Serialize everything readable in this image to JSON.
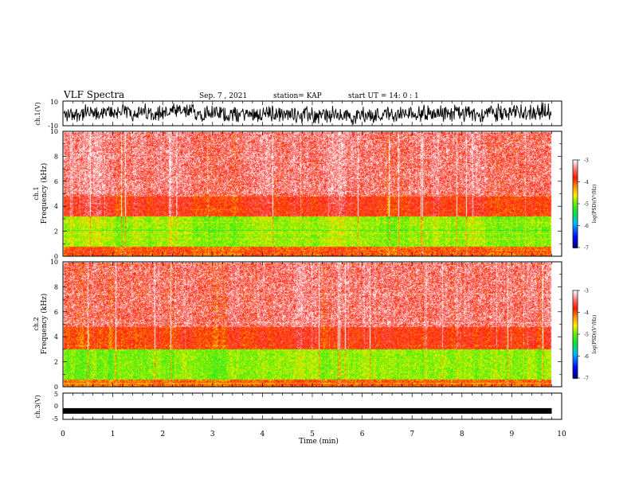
{
  "header": {
    "title": "VLF Spectra",
    "date": "Sep. 7 , 2021",
    "station": "station= KAP",
    "start": "start  UT =   14: 0  : 1"
  },
  "chart_data": [
    {
      "type": "line",
      "name": "ch1-waveform",
      "ylabel": "ch.1(V)",
      "ylim": [
        -10,
        10
      ],
      "yticks": [
        "10",
        "-10"
      ],
      "xlim": [
        0,
        10
      ],
      "description_color": "#000000"
    },
    {
      "type": "heatmap",
      "name": "ch1-spectrogram",
      "ylabel": "ch.1\nFrequency  (kHz)",
      "ylabel_lines": [
        "ch.1",
        "Frequency  (kHz)"
      ],
      "ylim": [
        0,
        10
      ],
      "yticks": [
        "0",
        "2",
        "4",
        "6",
        "8",
        "10"
      ],
      "xlim": [
        0,
        9.8
      ],
      "bands": [
        {
          "from_khz": 0,
          "to_khz": 0.8,
          "level": "orange-red"
        },
        {
          "from_khz": 0.8,
          "to_khz": 3.2,
          "level": "yellow-green"
        },
        {
          "from_khz": 3.2,
          "to_khz": 5.0,
          "level": "red"
        },
        {
          "from_khz": 5.0,
          "to_khz": 10,
          "level": "red-white"
        }
      ],
      "colorbar": {
        "min": -7,
        "max": -3,
        "ticks": [
          "-3",
          "-4",
          "-5",
          "-6",
          "-7"
        ],
        "label": "log(PSD)(V²/Hz)"
      }
    },
    {
      "type": "heatmap",
      "name": "ch2-spectrogram",
      "ylabel": "ch.2\nFrequency  (kHz)",
      "ylabel_lines": [
        "ch.2",
        "Frequency  (kHz)"
      ],
      "ylim": [
        0,
        10
      ],
      "yticks": [
        "0",
        "2",
        "4",
        "6",
        "8",
        "10"
      ],
      "xlim": [
        0,
        9.8
      ],
      "bands": [
        {
          "from_khz": 0,
          "to_khz": 0.6,
          "level": "orange-red"
        },
        {
          "from_khz": 0.6,
          "to_khz": 3.0,
          "level": "yellow-green"
        },
        {
          "from_khz": 3.0,
          "to_khz": 4.8,
          "level": "red"
        },
        {
          "from_khz": 4.8,
          "to_khz": 10,
          "level": "red-white"
        }
      ],
      "colorbar": {
        "min": -7,
        "max": -3,
        "ticks": [
          "-3",
          "-4",
          "-5",
          "-6",
          "-7"
        ],
        "label": "log(PSD)(V²/Hz)"
      }
    },
    {
      "type": "line",
      "name": "ch3-waveform",
      "ylabel": "ch.3(V)",
      "ylim": [
        -5,
        5
      ],
      "yticks": [
        "5",
        "0",
        "-5"
      ],
      "xlim": [
        0,
        10
      ],
      "baseline_value": -1.8
    }
  ],
  "xaxis": {
    "label": "Time  (min)",
    "ticks": [
      "0",
      "1",
      "2",
      "3",
      "4",
      "5",
      "6",
      "7",
      "8",
      "9",
      "10"
    ],
    "range": [
      0,
      10
    ],
    "data_end": 9.8
  }
}
